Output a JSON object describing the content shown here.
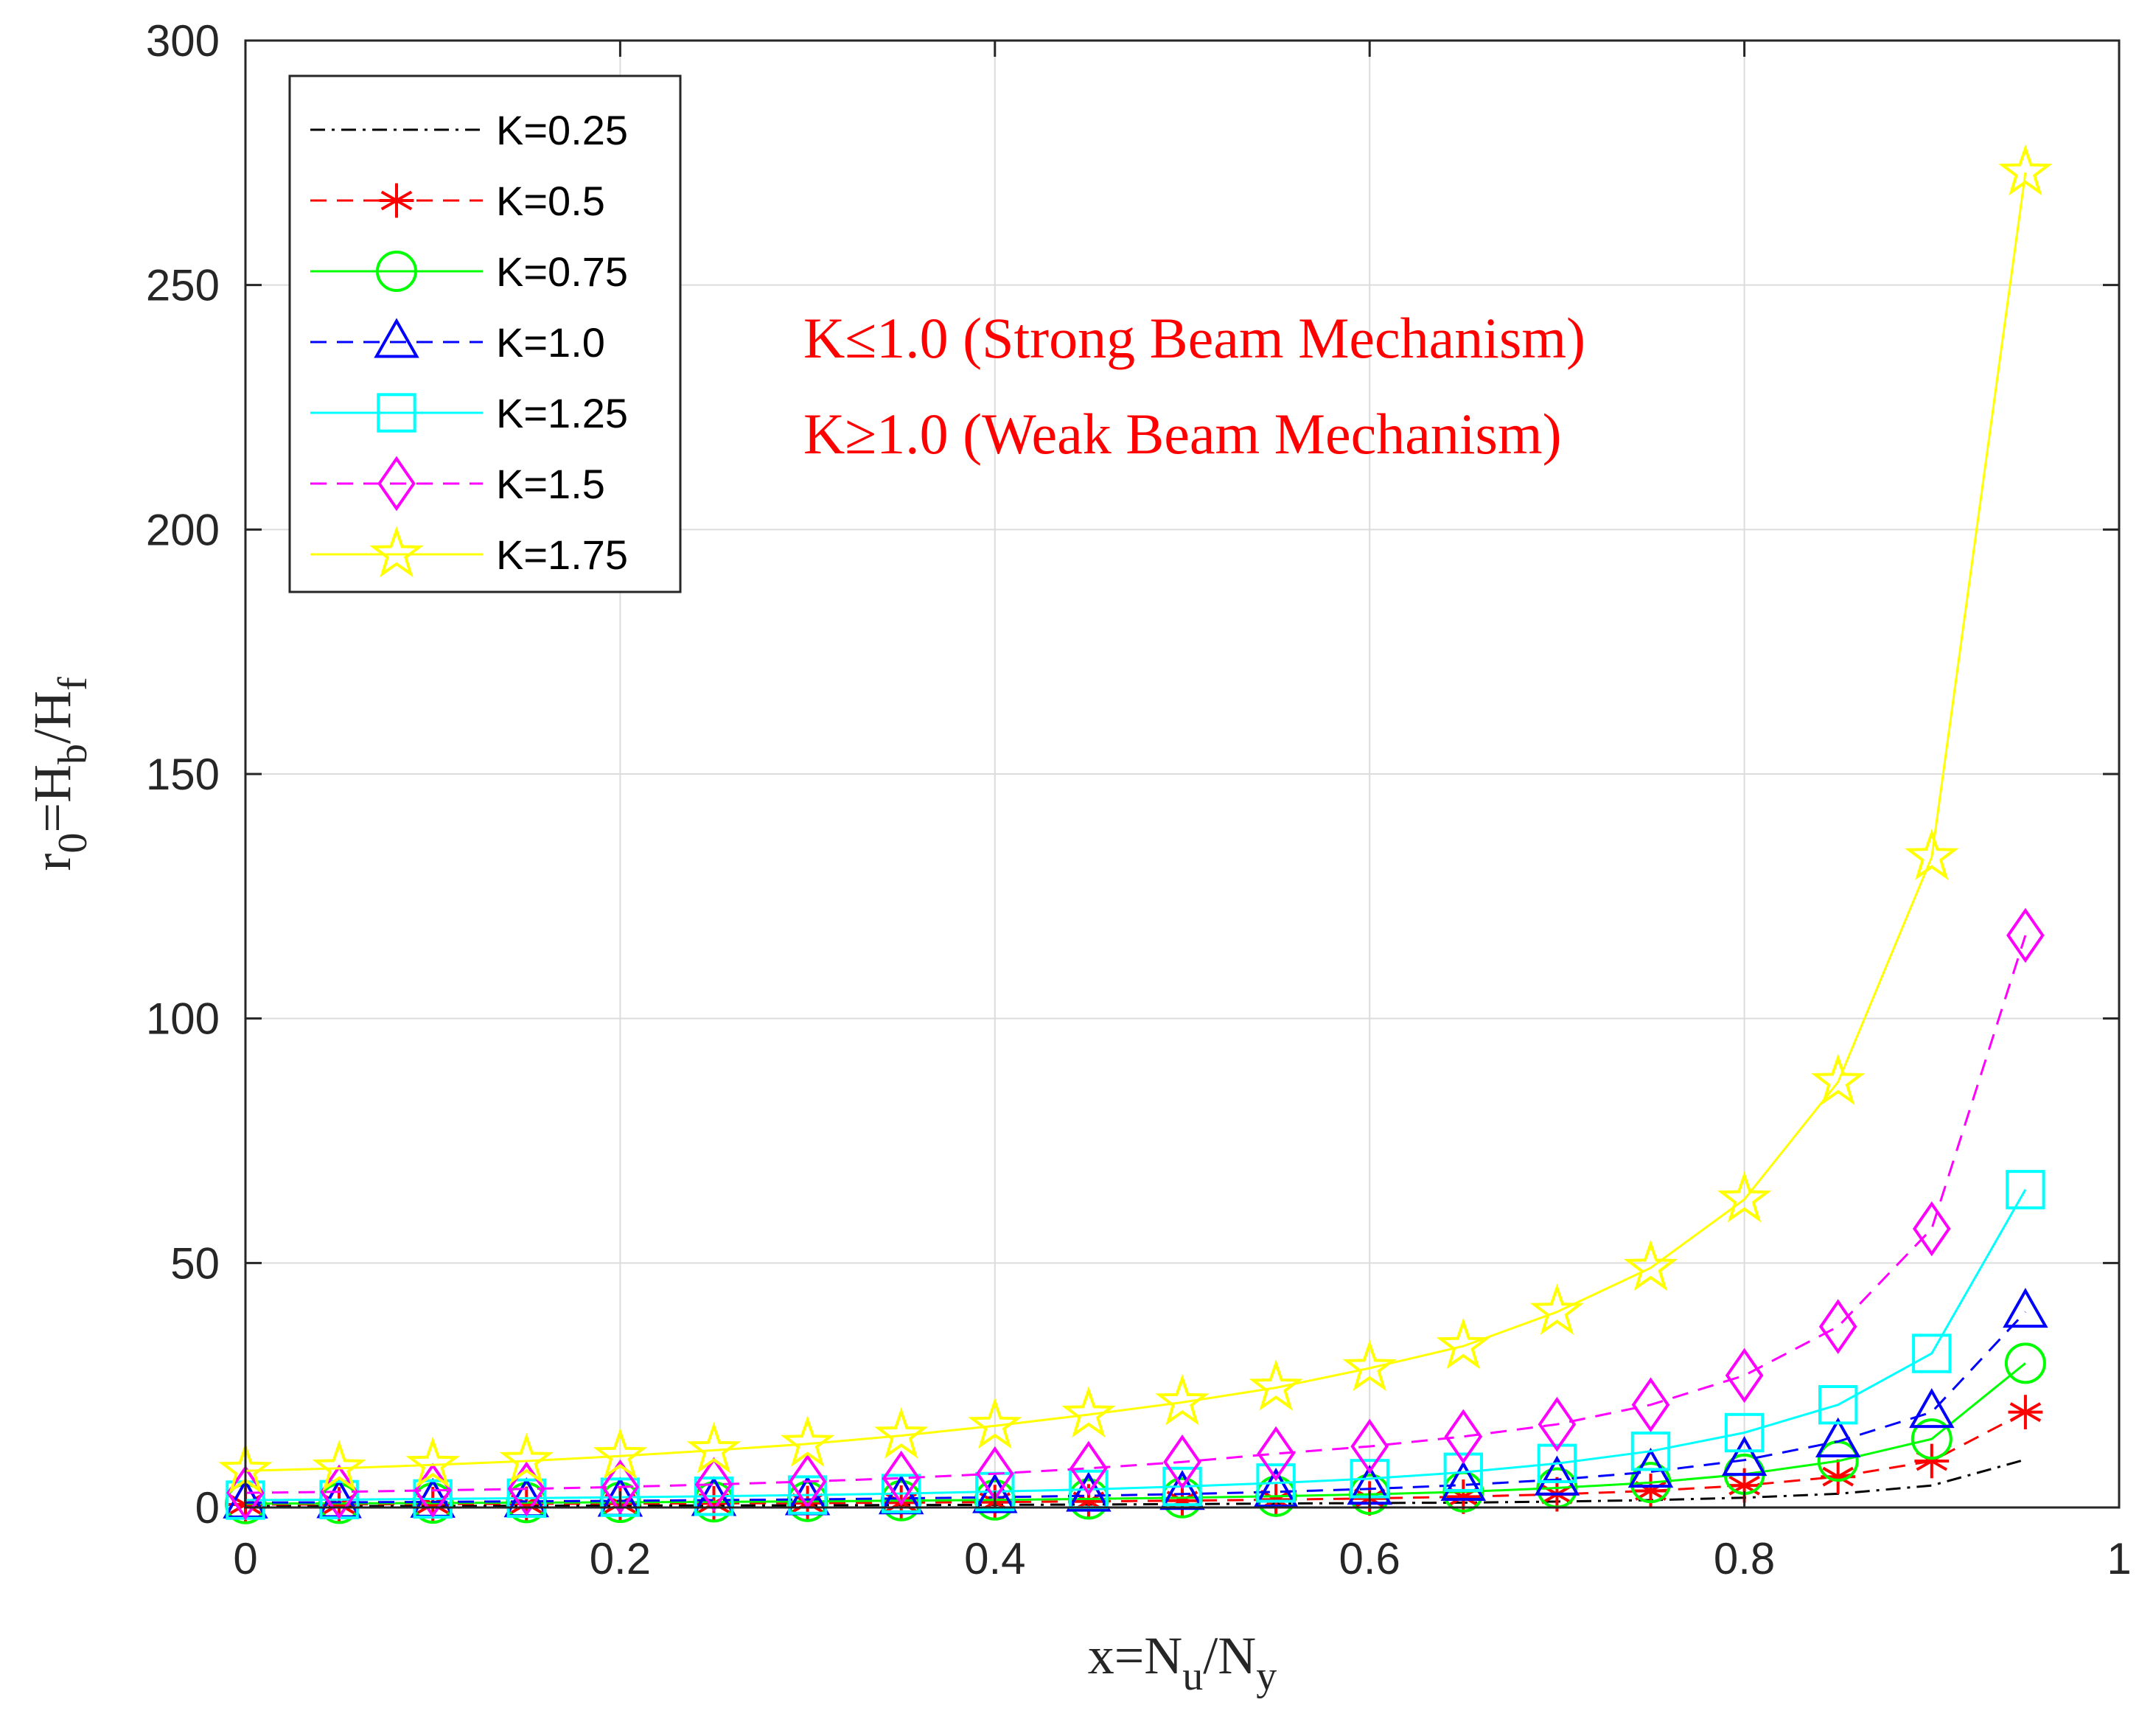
{
  "chart_data": {
    "type": "line",
    "title": "",
    "xlabel": {
      "base": "x=N",
      "sub1": "u",
      "mid": "/N",
      "sub2": "y"
    },
    "ylabel": {
      "base": "r",
      "sub1": "0",
      "mid1": "=H",
      "sub2": "b",
      "mid2": "/H",
      "sub3": "f"
    },
    "xlim": [
      0,
      1
    ],
    "ylim": [
      0,
      300
    ],
    "xticks": [
      0,
      0.2,
      0.4,
      0.6,
      0.8,
      1
    ],
    "xtick_labels": [
      "0",
      "0.2",
      "0.4",
      "0.6",
      "0.8",
      "1"
    ],
    "yticks": [
      0,
      50,
      100,
      150,
      200,
      250,
      300
    ],
    "ytick_labels": [
      "0",
      "50",
      "100",
      "150",
      "200",
      "250",
      "300"
    ],
    "grid": true,
    "legend_position": "top-left",
    "x": [
      0,
      0.05,
      0.1,
      0.15,
      0.2,
      0.25,
      0.3,
      0.35,
      0.4,
      0.45,
      0.5,
      0.55,
      0.6,
      0.65,
      0.7,
      0.75,
      0.8,
      0.85,
      0.9,
      0.95
    ],
    "series": [
      {
        "name": "K=0.25",
        "color": "#000000",
        "dash": "dashdot",
        "marker": "none",
        "values": [
          0.3,
          0.3,
          0.3,
          0.35,
          0.4,
          0.4,
          0.45,
          0.5,
          0.55,
          0.6,
          0.7,
          0.8,
          0.9,
          1.0,
          1.2,
          1.5,
          2.0,
          2.8,
          4.5,
          9.8
        ]
      },
      {
        "name": "K=0.5",
        "color": "#ff0000",
        "dash": "dashed",
        "marker": "asterisk",
        "values": [
          0.6,
          0.65,
          0.7,
          0.75,
          0.8,
          0.85,
          0.9,
          1.0,
          1.1,
          1.25,
          1.4,
          1.6,
          1.85,
          2.2,
          2.7,
          3.4,
          4.5,
          6.3,
          9.5,
          19.5
        ]
      },
      {
        "name": "K=0.75",
        "color": "#00ff00",
        "dash": "solid",
        "marker": "circle",
        "values": [
          0.8,
          0.85,
          0.9,
          1.0,
          1.05,
          1.15,
          1.25,
          1.4,
          1.55,
          1.75,
          2.0,
          2.3,
          2.7,
          3.2,
          4.0,
          5.1,
          6.8,
          9.5,
          14.0,
          29.5
        ]
      },
      {
        "name": "K=1.0",
        "color": "#0000ff",
        "dash": "dashed",
        "marker": "triangle",
        "values": [
          1.0,
          1.05,
          1.15,
          1.25,
          1.35,
          1.5,
          1.65,
          1.85,
          2.1,
          2.4,
          2.75,
          3.2,
          3.8,
          4.6,
          5.7,
          7.3,
          9.7,
          13.5,
          19.5,
          40.0
        ]
      },
      {
        "name": "K=1.25",
        "color": "#00ffff",
        "dash": "solid",
        "marker": "square",
        "values": [
          1.5,
          1.6,
          1.75,
          1.9,
          2.1,
          2.3,
          2.55,
          2.85,
          3.25,
          3.7,
          4.3,
          5.0,
          5.9,
          7.2,
          9.0,
          11.5,
          15.3,
          21.0,
          31.5,
          65.0
        ]
      },
      {
        "name": "K=1.5",
        "color": "#ff00ff",
        "dash": "dashed",
        "marker": "diamond",
        "values": [
          3.0,
          3.2,
          3.5,
          3.8,
          4.2,
          4.7,
          5.3,
          6.0,
          6.9,
          8.0,
          9.3,
          11.0,
          12.5,
          14.5,
          17.0,
          21.0,
          27.0,
          37.0,
          57.0,
          117.0
        ]
      },
      {
        "name": "K=1.75",
        "color": "#ffff00",
        "dash": "solid",
        "marker": "star",
        "values": [
          7.5,
          8.0,
          8.7,
          9.5,
          10.5,
          11.7,
          13.0,
          14.7,
          16.7,
          19.0,
          21.5,
          24.5,
          28.5,
          33.0,
          40.0,
          49.0,
          63.0,
          87.0,
          133.0,
          273.0
        ]
      }
    ],
    "annotations": [
      {
        "text": "K≤1.0 (Strong Beam Mechanism)",
        "color": "#ff0000"
      },
      {
        "text": "K≥1.0 (Weak Beam Mechanism)",
        "color": "#ff0000"
      }
    ]
  }
}
